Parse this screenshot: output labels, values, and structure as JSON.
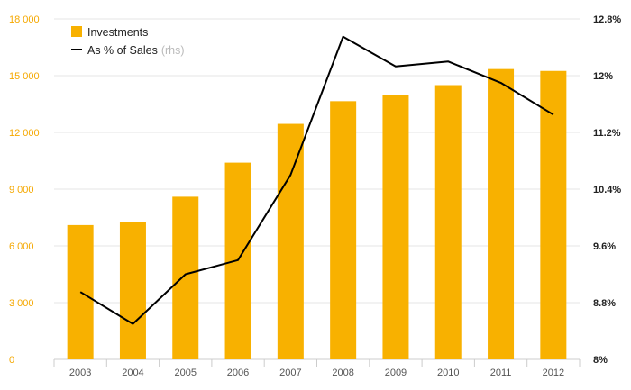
{
  "chart_data": {
    "type": "bar",
    "categories": [
      "2003",
      "2004",
      "2005",
      "2006",
      "2007",
      "2008",
      "2009",
      "2010",
      "2011",
      "2012"
    ],
    "series": [
      {
        "name": "Investments",
        "kind": "bar",
        "axis": "left",
        "color": "#f8b100",
        "values": [
          7100,
          7250,
          8600,
          10400,
          12450,
          13650,
          14000,
          14500,
          15350,
          15250
        ]
      },
      {
        "name": "As % of Sales",
        "name_suffix": "(rhs)",
        "kind": "line",
        "axis": "right",
        "color": "#000000",
        "values": [
          8.95,
          8.5,
          9.2,
          9.4,
          10.6,
          12.55,
          12.13,
          12.2,
          11.9,
          11.45
        ]
      }
    ],
    "y_left": {
      "ylim": [
        0,
        18000
      ],
      "ticks": [
        0,
        3000,
        6000,
        9000,
        12000,
        15000,
        18000
      ],
      "tick_labels": [
        "0",
        "3 000",
        "6 000",
        "9 000",
        "12 000",
        "15 000",
        "18 000"
      ],
      "color": "#f5a800"
    },
    "y_right": {
      "ylim": [
        8,
        12.8
      ],
      "ticks": [
        8,
        8.8,
        9.6,
        10.4,
        11.2,
        12,
        12.8
      ],
      "tick_labels": [
        "8%",
        "8.8%",
        "9.6%",
        "10.4%",
        "11.2%",
        "12%",
        "12.8%"
      ]
    },
    "grid": true,
    "legend": {
      "position": "top-left",
      "items": [
        {
          "label": "Investments",
          "marker": "square"
        },
        {
          "label": "As % of Sales",
          "suffix": "(rhs)",
          "marker": "line"
        }
      ]
    }
  }
}
